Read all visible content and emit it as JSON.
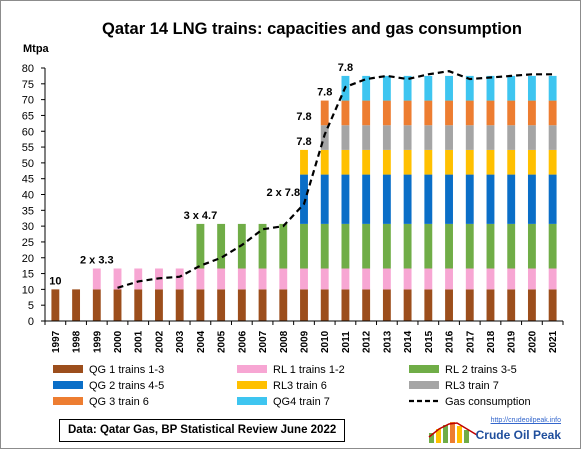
{
  "chart_data": {
    "type": "bar",
    "stacked": true,
    "title": "Qatar 14 LNG trains: capacities and gas consumption",
    "ylabel": "Mtpa",
    "ylim": [
      0,
      80
    ],
    "yticks": [
      0,
      5,
      10,
      15,
      20,
      25,
      30,
      35,
      40,
      45,
      50,
      55,
      60,
      65,
      70,
      75,
      80
    ],
    "grid": false,
    "legend_position": "bottom",
    "categories": [
      "1997",
      "1998",
      "1999",
      "2000",
      "2001",
      "2002",
      "2003",
      "2004",
      "2005",
      "2006",
      "2007",
      "2008",
      "2009",
      "2010",
      "2011",
      "2012",
      "2013",
      "2014",
      "2015",
      "2016",
      "2017",
      "2018",
      "2019",
      "2020",
      "2021"
    ],
    "series": [
      {
        "name": "QG 1 trains 1-3",
        "color": "#9c4e1c",
        "values": [
          10,
          10,
          10,
          10,
          10,
          10,
          10,
          10,
          10,
          10,
          10,
          10,
          10,
          10,
          10,
          10,
          10,
          10,
          10,
          10,
          10,
          10,
          10,
          10,
          10
        ]
      },
      {
        "name": "RL 1 trains 1-2",
        "color": "#f7a6d3",
        "values": [
          0,
          0,
          6.6,
          6.6,
          6.6,
          6.6,
          6.6,
          6.6,
          6.6,
          6.6,
          6.6,
          6.6,
          6.6,
          6.6,
          6.6,
          6.6,
          6.6,
          6.6,
          6.6,
          6.6,
          6.6,
          6.6,
          6.6,
          6.6,
          6.6
        ]
      },
      {
        "name": "RL 2 trains 3-5",
        "color": "#70ad47",
        "values": [
          0,
          0,
          0,
          0,
          0,
          0,
          0,
          14.1,
          14.1,
          14.1,
          14.1,
          14.1,
          14.1,
          14.1,
          14.1,
          14.1,
          14.1,
          14.1,
          14.1,
          14.1,
          14.1,
          14.1,
          14.1,
          14.1,
          14.1
        ]
      },
      {
        "name": "QG 2 trains 4-5",
        "color": "#0a6ec7",
        "values": [
          0,
          0,
          0,
          0,
          0,
          0,
          0,
          0,
          0,
          0,
          0,
          0,
          15.6,
          15.6,
          15.6,
          15.6,
          15.6,
          15.6,
          15.6,
          15.6,
          15.6,
          15.6,
          15.6,
          15.6,
          15.6
        ]
      },
      {
        "name": "RL3 train 6",
        "color": "#ffc000",
        "values": [
          0,
          0,
          0,
          0,
          0,
          0,
          0,
          0,
          0,
          0,
          0,
          0,
          7.8,
          7.8,
          7.8,
          7.8,
          7.8,
          7.8,
          7.8,
          7.8,
          7.8,
          7.8,
          7.8,
          7.8,
          7.8
        ]
      },
      {
        "name": "RL3 train 7",
        "color": "#a5a5a5",
        "values": [
          0,
          0,
          0,
          0,
          0,
          0,
          0,
          0,
          0,
          0,
          0,
          0,
          0,
          7.8,
          7.8,
          7.8,
          7.8,
          7.8,
          7.8,
          7.8,
          7.8,
          7.8,
          7.8,
          7.8,
          7.8
        ]
      },
      {
        "name": "QG 3 train 6",
        "color": "#ed7d31",
        "values": [
          0,
          0,
          0,
          0,
          0,
          0,
          0,
          0,
          0,
          0,
          0,
          0,
          0,
          7.8,
          7.8,
          7.8,
          7.8,
          7.8,
          7.8,
          7.8,
          7.8,
          7.8,
          7.8,
          7.8,
          7.8
        ]
      },
      {
        "name": "QG4 train 7",
        "color": "#3ec5f0",
        "values": [
          0,
          0,
          0,
          0,
          0,
          0,
          0,
          0,
          0,
          0,
          0,
          0,
          0,
          0,
          7.8,
          7.8,
          7.8,
          7.8,
          7.8,
          7.8,
          7.8,
          7.8,
          7.8,
          7.8,
          7.8
        ]
      }
    ],
    "line": {
      "name": "Gas consumption",
      "color": "#000000",
      "style": "dashed",
      "x": [
        "2000",
        "2001",
        "2002",
        "2003",
        "2004",
        "2005",
        "2006",
        "2007",
        "2008",
        "2009",
        "2010",
        "2011",
        "2012",
        "2013",
        "2014",
        "2015",
        "2016",
        "2017",
        "2018",
        "2019",
        "2020",
        "2021"
      ],
      "values": [
        10.5,
        12.5,
        13.5,
        14,
        17.5,
        20,
        24,
        29,
        30,
        37,
        59,
        74,
        76.5,
        77.5,
        76.5,
        78,
        79,
        76.5,
        77,
        77.5,
        78,
        78
      ]
    },
    "annotations": [
      {
        "text": "10",
        "category": "1997",
        "y": 10
      },
      {
        "text": "2 x 3.3",
        "category": "1999",
        "y": 16.6
      },
      {
        "text": "3 x 4.7",
        "category": "2004",
        "y": 30.7
      },
      {
        "text": "2 x 7.8",
        "category": "2008",
        "y": 38
      },
      {
        "text": "7.8",
        "category": "2009",
        "y": 54
      },
      {
        "text": "7.8",
        "category": "2009",
        "y": 62
      },
      {
        "text": "7.8",
        "category": "2010",
        "y": 69.7
      },
      {
        "text": "7.8",
        "category": "2011",
        "y": 77.5
      }
    ]
  },
  "source": "Data: Qatar Gas,  BP Statistical Review June 2022",
  "logo": {
    "url": "http://crudeoilpeak.info",
    "name": "Crude Oil Peak"
  }
}
